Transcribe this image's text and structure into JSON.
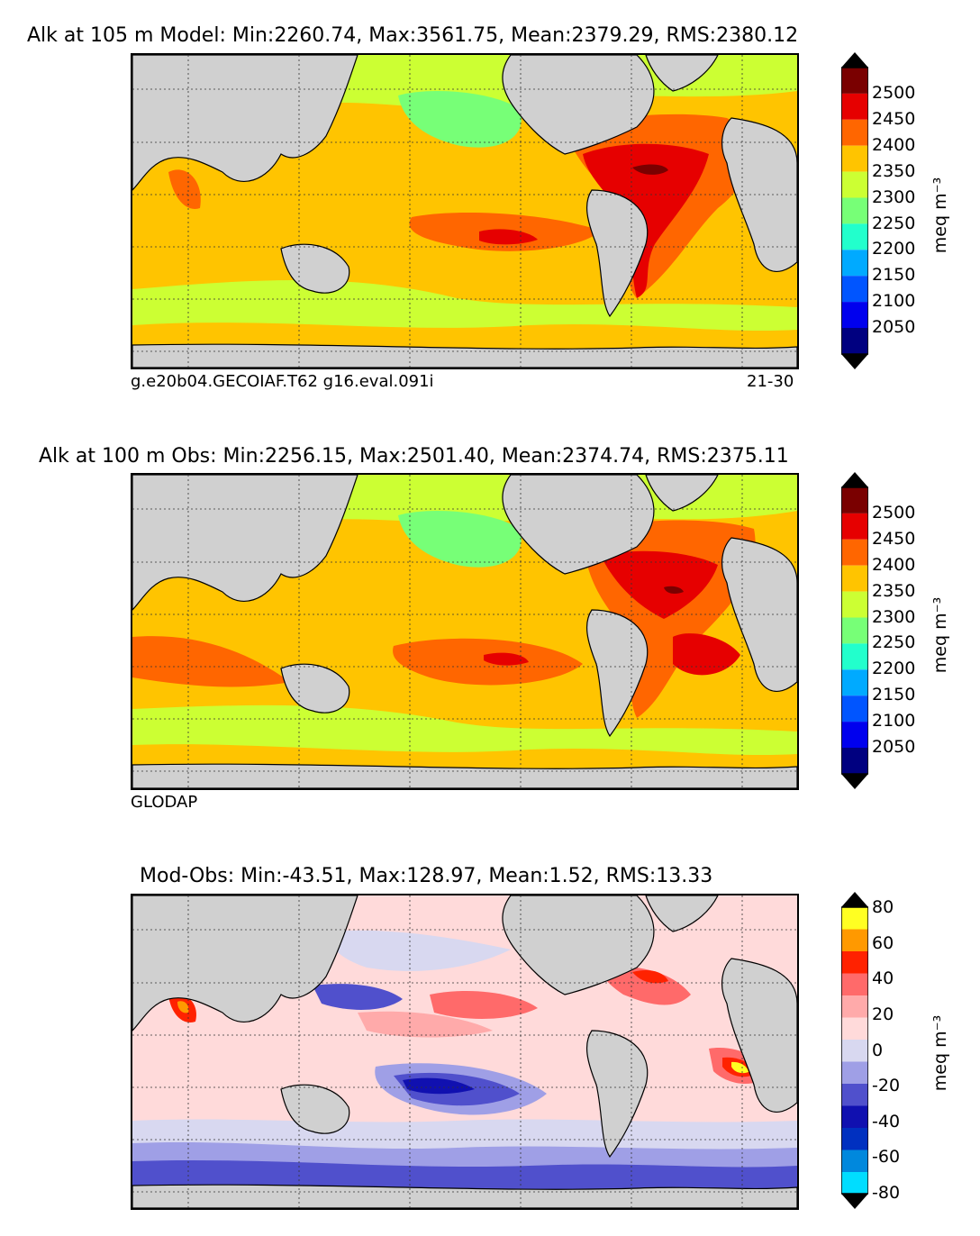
{
  "panels": [
    {
      "title": "Alk at 105 m Model: Min:2260.74, Max:3561.75, Mean:2379.29, RMS:2380.12",
      "left_label": "g.e20b04.GECOIAF.T62 g16.eval.091i",
      "right_label": "21-30",
      "colorbar": {
        "ticks": [
          "2500",
          "2450",
          "2400",
          "2350",
          "2300",
          "2250",
          "2200",
          "2150",
          "2100",
          "2050"
        ],
        "unit": "meq m⁻³",
        "colors": [
          "#7a0000",
          "#e60000",
          "#ff6600",
          "#ffc400",
          "#ccff33",
          "#77ff77",
          "#22ffcc",
          "#00aaff",
          "#0055ff",
          "#0000ee",
          "#000080"
        ]
      }
    },
    {
      "title": "Alk at 100 m Obs: Min:2256.15, Max:2501.40, Mean:2374.74, RMS:2375.11",
      "left_label": "GLODAP",
      "right_label": "",
      "colorbar": {
        "ticks": [
          "2500",
          "2450",
          "2400",
          "2350",
          "2300",
          "2250",
          "2200",
          "2150",
          "2100",
          "2050"
        ],
        "unit": "meq m⁻³",
        "colors": [
          "#7a0000",
          "#e60000",
          "#ff6600",
          "#ffc400",
          "#ccff33",
          "#77ff77",
          "#22ffcc",
          "#00aaff",
          "#0055ff",
          "#0000ee",
          "#000080"
        ]
      }
    },
    {
      "title": "Mod-Obs: Min:-43.51, Max:128.97, Mean:1.52, RMS:13.33",
      "left_label": "",
      "right_label": "",
      "colorbar": {
        "ticks": [
          "80",
          "60",
          "40",
          "20",
          "0",
          "-20",
          "-40",
          "-60",
          "-80"
        ],
        "unit": "meq m⁻³",
        "colors": [
          "#ffff22",
          "#ff9900",
          "#ff2200",
          "#ff6a6a",
          "#ffaaaa",
          "#ffdada",
          "#d8d8f0",
          "#9f9fe6",
          "#5050cc",
          "#1010b0",
          "#0030c0",
          "#0088dd",
          "#00ddff"
        ]
      }
    }
  ]
}
